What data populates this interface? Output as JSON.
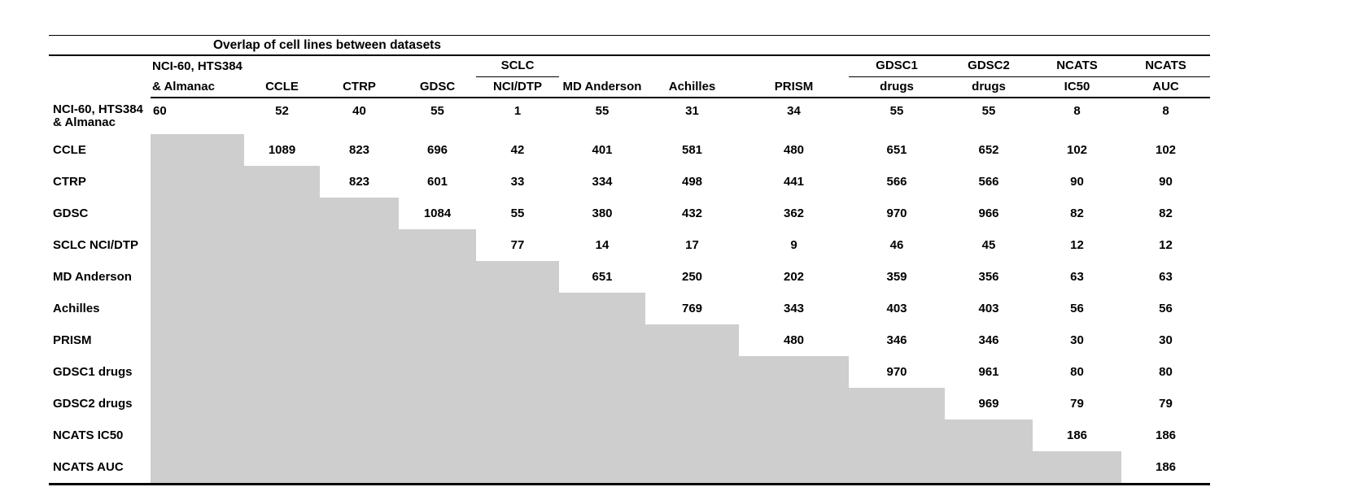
{
  "title": "Overlap of cell lines between datasets",
  "colors": {
    "background": "#ffffff",
    "text": "#000000",
    "rule": "#000000",
    "shaded_cell": "#cecece"
  },
  "table": {
    "columns": [
      {
        "line1": "NCI-60, HTS384",
        "line2": "& Almanac",
        "underline_line1": false,
        "align": "left"
      },
      {
        "line1": "",
        "line2": "CCLE",
        "underline_line1": false,
        "align": "center"
      },
      {
        "line1": "",
        "line2": "CTRP",
        "underline_line1": false,
        "align": "center"
      },
      {
        "line1": "",
        "line2": "GDSC",
        "underline_line1": false,
        "align": "center"
      },
      {
        "line1": "SCLC",
        "line2": "NCI/DTP",
        "underline_line1": true,
        "align": "center"
      },
      {
        "line1": "",
        "line2": "MD Anderson",
        "underline_line1": false,
        "align": "center"
      },
      {
        "line1": "",
        "line2": "Achilles",
        "underline_line1": false,
        "align": "center"
      },
      {
        "line1": "",
        "line2": "PRISM",
        "underline_line1": false,
        "align": "center"
      },
      {
        "line1": "GDSC1",
        "line2": "drugs",
        "underline_line1": true,
        "align": "center"
      },
      {
        "line1": "GDSC2",
        "line2": "drugs",
        "underline_line1": true,
        "align": "center"
      },
      {
        "line1": "NCATS",
        "line2": "IC50",
        "underline_line1": true,
        "align": "center"
      },
      {
        "line1": "NCATS",
        "line2": "AUC",
        "underline_line1": true,
        "align": "center"
      }
    ],
    "rows": [
      {
        "label": "NCI-60, HTS384\n& Almanac",
        "values": [
          60,
          52,
          40,
          55,
          1,
          55,
          31,
          34,
          55,
          55,
          8,
          8
        ]
      },
      {
        "label": "CCLE",
        "values": [
          null,
          1089,
          823,
          696,
          42,
          401,
          581,
          480,
          651,
          652,
          102,
          102
        ]
      },
      {
        "label": "CTRP",
        "values": [
          null,
          null,
          823,
          601,
          33,
          334,
          498,
          441,
          566,
          566,
          90,
          90
        ]
      },
      {
        "label": "GDSC",
        "values": [
          null,
          null,
          null,
          1084,
          55,
          380,
          432,
          362,
          970,
          966,
          82,
          82
        ]
      },
      {
        "label": "SCLC NCI/DTP",
        "values": [
          null,
          null,
          null,
          null,
          77,
          14,
          17,
          9,
          46,
          45,
          12,
          12
        ]
      },
      {
        "label": "MD Anderson",
        "values": [
          null,
          null,
          null,
          null,
          null,
          651,
          250,
          202,
          359,
          356,
          63,
          63
        ]
      },
      {
        "label": "Achilles",
        "values": [
          null,
          null,
          null,
          null,
          null,
          null,
          769,
          343,
          403,
          403,
          56,
          56
        ]
      },
      {
        "label": "PRISM",
        "values": [
          null,
          null,
          null,
          null,
          null,
          null,
          null,
          480,
          346,
          346,
          30,
          30
        ]
      },
      {
        "label": "GDSC1 drugs",
        "values": [
          null,
          null,
          null,
          null,
          null,
          null,
          null,
          null,
          970,
          961,
          80,
          80
        ]
      },
      {
        "label": "GDSC2 drugs",
        "values": [
          null,
          null,
          null,
          null,
          null,
          null,
          null,
          null,
          null,
          969,
          79,
          79
        ]
      },
      {
        "label": "NCATS IC50",
        "values": [
          null,
          null,
          null,
          null,
          null,
          null,
          null,
          null,
          null,
          null,
          186,
          186
        ]
      },
      {
        "label": "NCATS AUC",
        "values": [
          null,
          null,
          null,
          null,
          null,
          null,
          null,
          null,
          null,
          null,
          null,
          186
        ]
      }
    ]
  }
}
